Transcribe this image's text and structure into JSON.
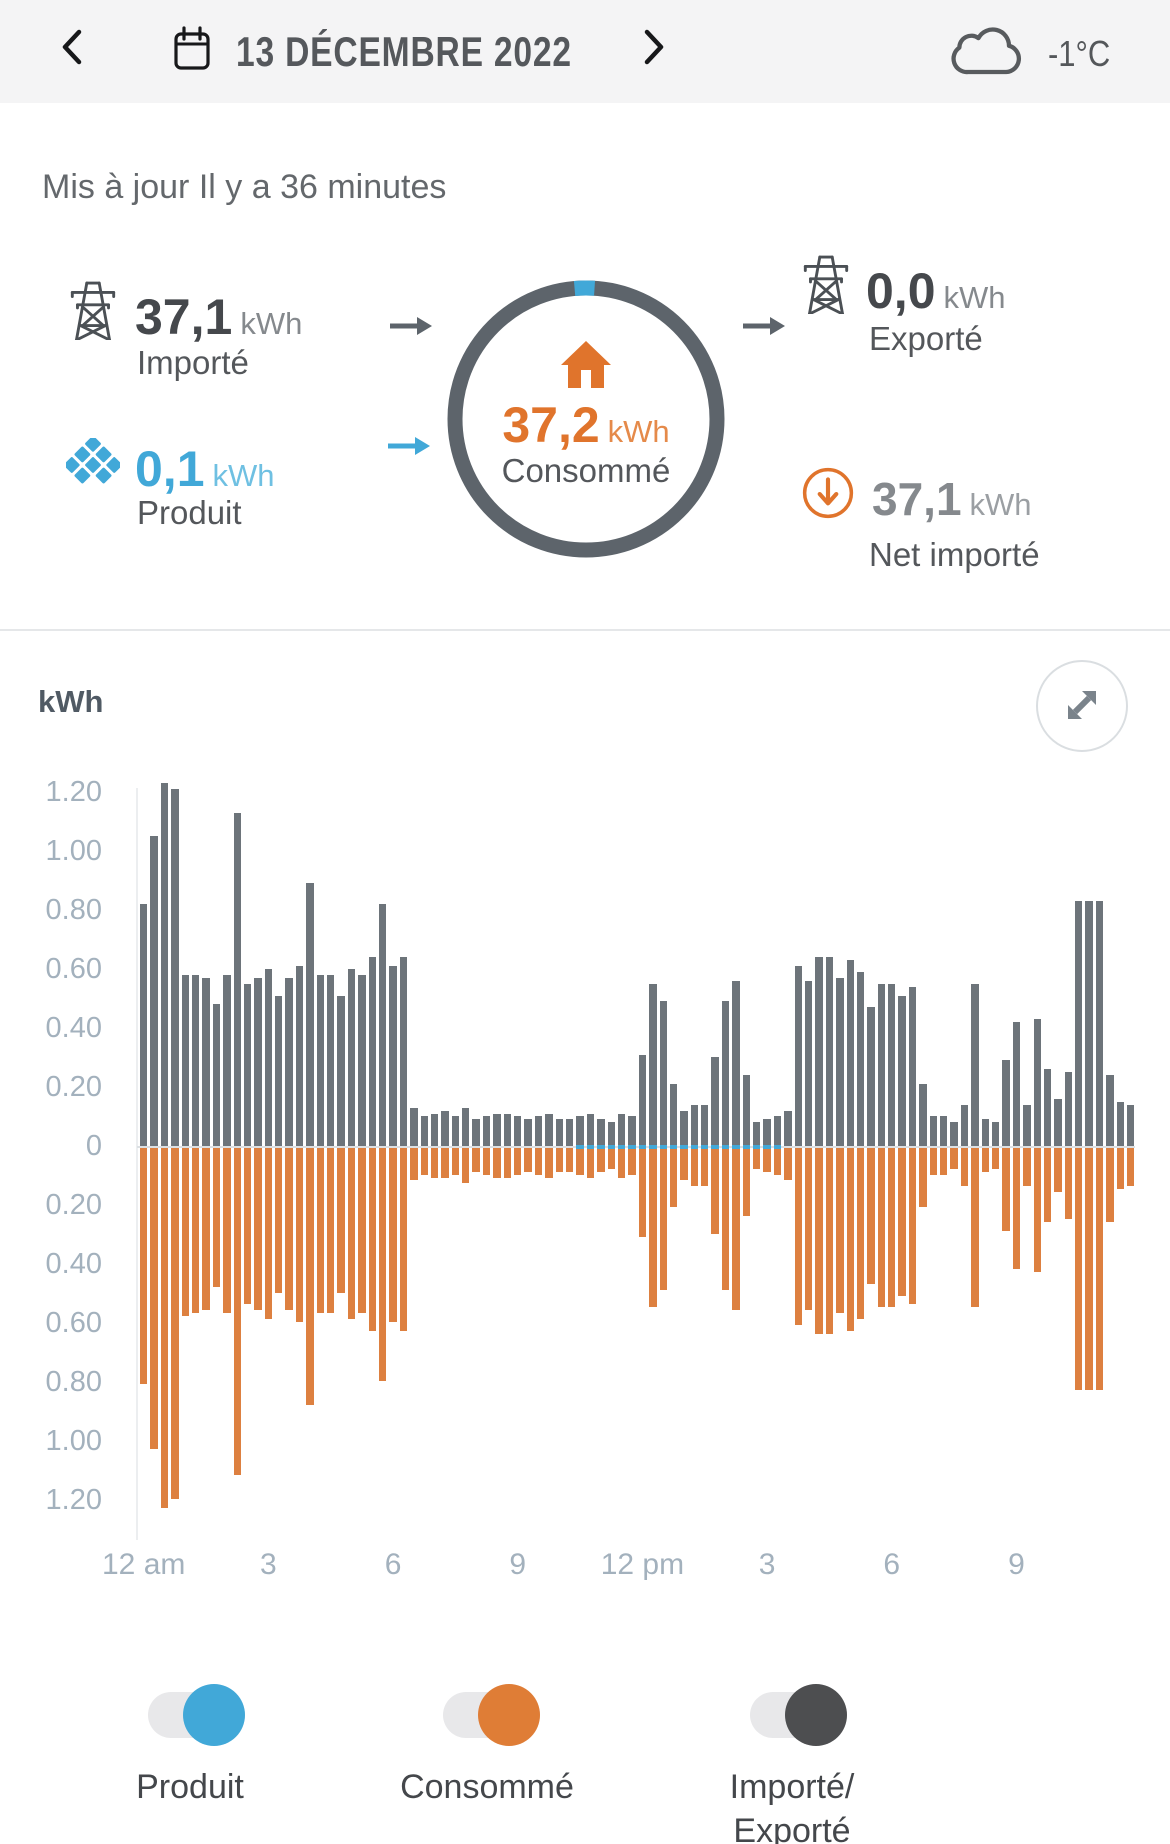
{
  "header": {
    "date": "13 DÉCEMBRE 2022",
    "temperature": "-1°C"
  },
  "updated": "Mis à jour Il y a 36 minutes",
  "flow": {
    "imported": {
      "value": "37,1",
      "unit": "kWh",
      "label": "Importé"
    },
    "produced": {
      "value": "0,1",
      "unit": "kWh",
      "label": "Produit"
    },
    "consumed": {
      "value": "37,2",
      "unit": "kWh",
      "label": "Consommé"
    },
    "exported": {
      "value": "0,0",
      "unit": "kWh",
      "label": "Exporté"
    },
    "net_imported": {
      "value": "37,1",
      "unit": "kWh",
      "label": "Net importé"
    }
  },
  "chart": {
    "axis_unit": "kWh",
    "colors": {
      "imported": "#6d747a",
      "consumed": "#dd8040",
      "produced": "#41a8d8"
    }
  },
  "chart_data": {
    "type": "bar",
    "interval_minutes": 15,
    "x_range": "12 am – 11:45 pm",
    "ylim": [
      -1.3,
      1.3
    ],
    "grid": false,
    "legend_position": "bottom-toggles",
    "y_ticks": [
      {
        "label": "1.20",
        "v": 1.2
      },
      {
        "label": "1.00",
        "v": 1.0
      },
      {
        "label": "0.80",
        "v": 0.8
      },
      {
        "label": "0.60",
        "v": 0.6
      },
      {
        "label": "0.40",
        "v": 0.4
      },
      {
        "label": "0.20",
        "v": 0.2
      },
      {
        "label": "0",
        "v": 0.0
      },
      {
        "label": "0.20",
        "v": -0.2
      },
      {
        "label": "0.40",
        "v": -0.4
      },
      {
        "label": "0.60",
        "v": -0.6
      },
      {
        "label": "0.80",
        "v": -0.8
      },
      {
        "label": "1.00",
        "v": -1.0
      },
      {
        "label": "1.20",
        "v": -1.2
      }
    ],
    "x_ticks": [
      {
        "label": "12 am",
        "bar": 0
      },
      {
        "label": "3",
        "bar": 12
      },
      {
        "label": "6",
        "bar": 24
      },
      {
        "label": "9",
        "bar": 36
      },
      {
        "label": "12 pm",
        "bar": 48
      },
      {
        "label": "3",
        "bar": 60
      },
      {
        "label": "6",
        "bar": 72
      },
      {
        "label": "9",
        "bar": 84
      }
    ],
    "series": [
      {
        "name": "Importé/Exporté",
        "color": "#6d747a",
        "values": [
          0.82,
          1.05,
          1.23,
          1.21,
          0.58,
          0.58,
          0.57,
          0.48,
          0.58,
          1.13,
          0.55,
          0.57,
          0.6,
          0.51,
          0.57,
          0.61,
          0.89,
          0.58,
          0.58,
          0.51,
          0.6,
          0.58,
          0.64,
          0.82,
          0.61,
          0.64,
          0.13,
          0.1,
          0.11,
          0.12,
          0.1,
          0.13,
          0.09,
          0.1,
          0.11,
          0.11,
          0.1,
          0.09,
          0.1,
          0.11,
          0.09,
          0.09,
          0.1,
          0.11,
          0.09,
          0.08,
          0.11,
          0.1,
          0.31,
          0.55,
          0.49,
          0.21,
          0.12,
          0.14,
          0.14,
          0.3,
          0.49,
          0.56,
          0.24,
          0.08,
          0.09,
          0.1,
          0.12,
          0.61,
          0.56,
          0.64,
          0.64,
          0.57,
          0.63,
          0.59,
          0.47,
          0.55,
          0.55,
          0.51,
          0.54,
          0.21,
          0.1,
          0.1,
          0.08,
          0.14,
          0.55,
          0.09,
          0.08,
          0.29,
          0.42,
          0.14,
          0.43,
          0.26,
          0.16,
          0.25,
          0.83,
          0.83,
          0.83,
          0.24,
          0.15,
          0.14
        ]
      },
      {
        "name": "Consommé",
        "color": "#dd8040",
        "values": [
          -0.8,
          -1.02,
          -1.22,
          -1.19,
          -0.57,
          -0.56,
          -0.55,
          -0.47,
          -0.56,
          -1.11,
          -0.53,
          -0.55,
          -0.58,
          -0.49,
          -0.55,
          -0.59,
          -0.87,
          -0.56,
          -0.56,
          -0.49,
          -0.58,
          -0.56,
          -0.62,
          -0.79,
          -0.59,
          -0.62,
          -0.11,
          -0.09,
          -0.1,
          -0.1,
          -0.09,
          -0.12,
          -0.08,
          -0.09,
          -0.1,
          -0.1,
          -0.09,
          -0.08,
          -0.09,
          -0.1,
          -0.08,
          -0.08,
          -0.09,
          -0.1,
          -0.08,
          -0.07,
          -0.1,
          -0.09,
          -0.3,
          -0.54,
          -0.48,
          -0.2,
          -0.11,
          -0.13,
          -0.13,
          -0.29,
          -0.48,
          -0.55,
          -0.23,
          -0.07,
          -0.08,
          -0.09,
          -0.11,
          -0.6,
          -0.55,
          -0.63,
          -0.63,
          -0.56,
          -0.62,
          -0.58,
          -0.46,
          -0.54,
          -0.54,
          -0.5,
          -0.53,
          -0.2,
          -0.09,
          -0.09,
          -0.07,
          -0.13,
          -0.54,
          -0.08,
          -0.07,
          -0.28,
          -0.41,
          -0.13,
          -0.42,
          -0.25,
          -0.15,
          -0.24,
          -0.82,
          -0.82,
          -0.82,
          -0.25,
          -0.14,
          -0.13
        ]
      },
      {
        "name": "Produit",
        "color": "#41a8d8",
        "values": [
          0,
          0,
          0,
          0,
          0,
          0,
          0,
          0,
          0,
          0,
          0,
          0,
          0,
          0,
          0,
          0,
          0,
          0,
          0,
          0,
          0,
          0,
          0,
          0,
          0,
          0,
          0,
          0,
          0,
          0,
          0,
          0,
          0,
          0,
          0,
          0,
          0,
          0,
          0,
          0,
          0,
          0,
          0.01,
          0.01,
          0.01,
          0.01,
          0.01,
          0.01,
          0.01,
          0.01,
          0.01,
          0.01,
          0.01,
          0.01,
          0.01,
          0.01,
          0.01,
          0.01,
          0.01,
          0.01,
          0.01,
          0.01,
          0,
          0,
          0,
          0,
          0,
          0,
          0,
          0,
          0,
          0,
          0,
          0,
          0,
          0,
          0,
          0,
          0,
          0,
          0,
          0,
          0,
          0,
          0,
          0,
          0,
          0,
          0,
          0,
          0,
          0,
          0,
          0,
          0,
          0
        ]
      }
    ]
  },
  "toggles": [
    {
      "label": "Produit",
      "label2": "",
      "color": "#41a8d8",
      "state": "on"
    },
    {
      "label": "Consommé",
      "label2": "",
      "color": "#df7d36",
      "state": "on"
    },
    {
      "label": "Importé/",
      "label2": "Exporté",
      "color": "#4d4e50",
      "state": "on"
    }
  ]
}
